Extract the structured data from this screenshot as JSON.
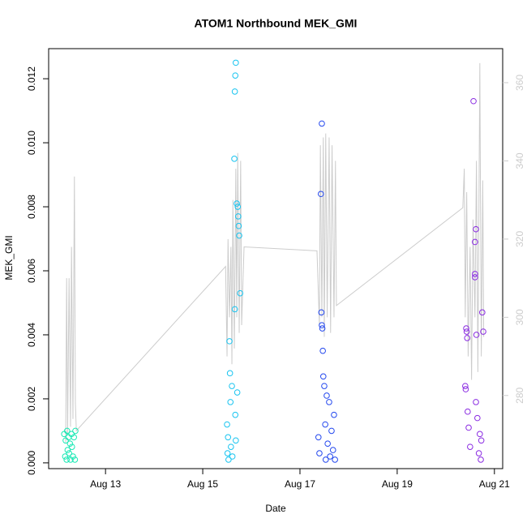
{
  "chart_data": {
    "type": "scatter",
    "title": "ATOM1 Northbound MEK_GMI",
    "x_label": "Date",
    "y_label": "MEK_GMI",
    "xlim": [
      11.83,
      21.17
    ],
    "xticks": [
      {
        "value": 13,
        "label": "Aug 13"
      },
      {
        "value": 15,
        "label": "Aug 15"
      },
      {
        "value": 17,
        "label": "Aug 17"
      },
      {
        "value": 19,
        "label": "Aug 19"
      },
      {
        "value": 21,
        "label": "Aug 21"
      }
    ],
    "ylim": [
      -0.00018,
      0.01294
    ],
    "yticks": [
      {
        "value": 0,
        "label": "0.000"
      },
      {
        "value": 0.002,
        "label": "0.002"
      },
      {
        "value": 0.004,
        "label": "0.004"
      },
      {
        "value": 0.006,
        "label": "0.006"
      },
      {
        "value": 0.008,
        "label": "0.008"
      },
      {
        "value": 0.01,
        "label": "0.010"
      },
      {
        "value": 0.012,
        "label": "0.012"
      }
    ],
    "y2lim": [
      261.3,
      368.7
    ],
    "y2ticks": [
      280,
      300,
      320,
      340,
      360
    ],
    "series": [
      {
        "color": "#19e8b4",
        "x": [
          12.15,
          12.17,
          12.18,
          12.2,
          12.21,
          12.22,
          12.24,
          12.25,
          12.27,
          12.28,
          12.3,
          12.31,
          12.33,
          12.35,
          12.37,
          12.38
        ],
        "values": [
          0.0009,
          0.0002,
          0.0007,
          0.0001,
          0.001,
          0.0004,
          0.0008,
          0.0003,
          0.0006,
          0.0001,
          0.0009,
          0.0005,
          0.0002,
          0.0008,
          0.0001,
          0.001
        ]
      },
      {
        "color": "#18c4f0",
        "x": [
          15.5,
          15.51,
          15.52,
          15.53,
          15.55,
          15.56,
          15.57,
          15.58,
          15.6,
          15.61,
          15.66,
          15.67,
          15.68,
          15.65,
          15.66,
          15.67,
          15.68,
          15.7,
          15.71,
          15.72,
          15.73,
          15.74,
          15.75,
          15.77
        ],
        "values": [
          0.0012,
          0.0003,
          0.0008,
          0.0001,
          0.0038,
          0.0028,
          0.0019,
          0.0005,
          0.0024,
          0.0002,
          0.0116,
          0.0121,
          0.0125,
          0.0095,
          0.0048,
          0.0015,
          0.0007,
          0.0081,
          0.0022,
          0.008,
          0.0077,
          0.0074,
          0.0071,
          0.0053
        ]
      },
      {
        "color": "#2448ee",
        "x": [
          17.38,
          17.4,
          17.45,
          17.43,
          17.44,
          17.45,
          17.46,
          17.47,
          17.48,
          17.5,
          17.52,
          17.53,
          17.55,
          17.57,
          17.6,
          17.62,
          17.65,
          17.68,
          17.7,
          17.72
        ],
        "values": [
          0.0008,
          0.0003,
          0.0106,
          0.0084,
          0.0047,
          0.0043,
          0.0042,
          0.0035,
          0.0027,
          0.0024,
          0.0012,
          0.0001,
          0.0021,
          0.0006,
          0.0019,
          0.0002,
          0.001,
          0.0004,
          0.0015,
          0.0001
        ]
      },
      {
        "color": "#8a2be2",
        "x": [
          20.4,
          20.41,
          20.42,
          20.43,
          20.44,
          20.45,
          20.47,
          20.5,
          20.57,
          20.62,
          20.6,
          20.6,
          20.6,
          20.62,
          20.63,
          20.65,
          20.68,
          20.7,
          20.72,
          20.75,
          20.77,
          20.73
        ],
        "values": [
          0.0024,
          0.0023,
          0.0042,
          0.0041,
          0.0039,
          0.0016,
          0.0011,
          0.0005,
          0.0113,
          0.0073,
          0.0069,
          0.0059,
          0.0058,
          0.0019,
          0.004,
          0.0014,
          0.0003,
          0.0009,
          0.0001,
          0.0047,
          0.0041,
          0.0007
        ]
      },
      {
        "type": "line",
        "axis": "y2",
        "color": "#cccccc",
        "x": [
          12.18,
          12.2,
          12.22,
          12.25,
          12.28,
          12.3,
          12.33,
          12.36,
          12.38,
          12.4,
          15.47,
          15.5,
          15.52,
          15.55,
          15.58,
          15.6,
          15.62,
          15.65,
          15.68,
          15.7,
          15.72,
          15.75,
          15.78,
          15.8,
          15.85,
          17.35,
          17.4,
          17.42,
          17.45,
          17.48,
          17.5,
          17.53,
          17.56,
          17.6,
          17.63,
          17.66,
          17.7,
          17.73,
          17.75,
          20.35,
          20.38,
          20.4,
          20.43,
          20.46,
          20.5,
          20.53,
          20.56,
          20.6,
          20.63,
          20.66,
          20.7,
          20.73,
          20.76,
          20.78
        ],
        "values": [
          268,
          310,
          270,
          310,
          272,
          318,
          274,
          336,
          278,
          271,
          313,
          290,
          320,
          300,
          318,
          288,
          330,
          292,
          338,
          300,
          342,
          296,
          340,
          298,
          318,
          317,
          298,
          344,
          300,
          346,
          295,
          347,
          300,
          346,
          296,
          344,
          300,
          340,
          303,
          328,
          338,
          300,
          332,
          290,
          318,
          284,
          325,
          300,
          340,
          286,
          365,
          290,
          335,
          295
        ]
      }
    ]
  }
}
